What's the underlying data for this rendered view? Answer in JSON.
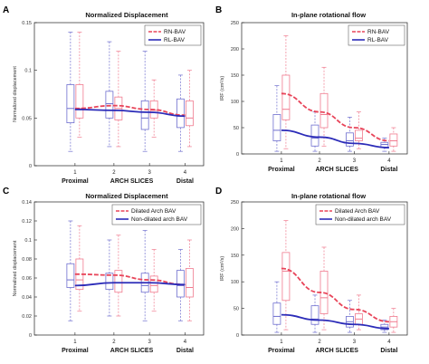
{
  "colors": {
    "red": "#e8455a",
    "blue": "#2b2bb8",
    "box_red": "#f07b8f",
    "box_blue": "#6f6fcf"
  },
  "chart_data": [
    {
      "letter": "A",
      "type": "box",
      "title": "Normalized Displacement",
      "ylabel": "Normalized displacement",
      "ylim": [
        0,
        0.15
      ],
      "yticks": [
        "0",
        "0.05",
        "0.1",
        "0.15"
      ],
      "ytick_values": [
        0,
        0.05,
        0.1,
        0.15
      ],
      "categories": [
        "1",
        "2",
        "3",
        "4"
      ],
      "x_end_labels": [
        "Proximal",
        "Distal"
      ],
      "x_center_label": "ARCH SLICES",
      "legend": [
        "RN-BAV",
        "RL-BAV"
      ],
      "boxes": [
        {
          "name": "RL-BAV",
          "pos": 1,
          "color": "blue",
          "stats": [
            0.015,
            0.045,
            0.06,
            0.085,
            0.14
          ]
        },
        {
          "name": "RN-BAV",
          "pos": 1,
          "color": "red",
          "stats": [
            0.03,
            0.05,
            0.06,
            0.085,
            0.14
          ]
        },
        {
          "name": "RL-BAV",
          "pos": 2,
          "color": "blue",
          "stats": [
            0.02,
            0.05,
            0.065,
            0.078,
            0.13
          ]
        },
        {
          "name": "RN-BAV",
          "pos": 2,
          "color": "red",
          "stats": [
            0.02,
            0.048,
            0.06,
            0.072,
            0.12
          ]
        },
        {
          "name": "RL-BAV",
          "pos": 3,
          "color": "blue",
          "stats": [
            0.015,
            0.038,
            0.05,
            0.068,
            0.12
          ]
        },
        {
          "name": "RN-BAV",
          "pos": 3,
          "color": "red",
          "stats": [
            0.03,
            0.05,
            0.058,
            0.068,
            0.09
          ]
        },
        {
          "name": "RL-BAV",
          "pos": 4,
          "color": "blue",
          "stats": [
            0.015,
            0.04,
            0.052,
            0.07,
            0.095
          ]
        },
        {
          "name": "RN-BAV",
          "pos": 4,
          "color": "red",
          "stats": [
            0.02,
            0.042,
            0.05,
            0.068,
            0.1
          ]
        }
      ],
      "trend": [
        {
          "name": "RN-BAV",
          "color": "red",
          "dashed": true,
          "x": [
            1,
            2,
            3,
            4
          ],
          "y": [
            0.06,
            0.063,
            0.059,
            0.053
          ]
        },
        {
          "name": "RL-BAV",
          "color": "blue",
          "dashed": false,
          "x": [
            1,
            2,
            3,
            4
          ],
          "y": [
            0.059,
            0.058,
            0.056,
            0.052
          ]
        }
      ]
    },
    {
      "letter": "B",
      "type": "box",
      "title": "In-plane rotational flow",
      "ylabel": "IRF (cm²/s)",
      "ylim": [
        0,
        250
      ],
      "yticks": [
        "0",
        "50",
        "100",
        "150",
        "200",
        "250"
      ],
      "ytick_values": [
        0,
        50,
        100,
        150,
        200,
        250
      ],
      "categories": [
        "1",
        "2",
        "3",
        "4"
      ],
      "x_end_labels": [
        "Proximal",
        "Distal"
      ],
      "x_center_label": "ARCH SLICES",
      "legend": [
        "RN-BAV",
        "RL-BAV"
      ],
      "boxes": [
        {
          "name": "RL-BAV",
          "pos": 1,
          "color": "blue",
          "stats": [
            5,
            25,
            45,
            75,
            130
          ]
        },
        {
          "name": "RN-BAV",
          "pos": 1,
          "color": "red",
          "stats": [
            10,
            65,
            85,
            150,
            225
          ]
        },
        {
          "name": "RL-BAV",
          "pos": 2,
          "color": "blue",
          "stats": [
            5,
            15,
            30,
            55,
            80
          ]
        },
        {
          "name": "RN-BAV",
          "pos": 2,
          "color": "red",
          "stats": [
            15,
            50,
            75,
            115,
            165
          ]
        },
        {
          "name": "RL-BAV",
          "pos": 3,
          "color": "blue",
          "stats": [
            5,
            15,
            25,
            40,
            70
          ]
        },
        {
          "name": "RN-BAV",
          "pos": 3,
          "color": "red",
          "stats": [
            10,
            25,
            30,
            45,
            80
          ]
        },
        {
          "name": "RL-BAV",
          "pos": 4,
          "color": "blue",
          "stats": [
            5,
            12,
            18,
            22,
            30
          ]
        },
        {
          "name": "RN-BAV",
          "pos": 4,
          "color": "red",
          "stats": [
            5,
            15,
            25,
            38,
            50
          ]
        }
      ],
      "trend": [
        {
          "name": "RN-BAV",
          "color": "red",
          "dashed": true,
          "x": [
            1,
            2,
            3,
            4
          ],
          "y": [
            115,
            80,
            50,
            25
          ]
        },
        {
          "name": "RL-BAV",
          "color": "blue",
          "dashed": false,
          "x": [
            1,
            2,
            3,
            4
          ],
          "y": [
            45,
            32,
            20,
            12
          ]
        }
      ]
    },
    {
      "letter": "C",
      "type": "box",
      "title": "Normalized Displacement",
      "ylabel": "Normalized displacement",
      "ylim": [
        0,
        0.14
      ],
      "yticks": [
        "0",
        "0.02",
        "0.04",
        "0.06",
        "0.08",
        "0.1",
        "0.12",
        "0.14"
      ],
      "ytick_values": [
        0,
        0.02,
        0.04,
        0.06,
        0.08,
        0.1,
        0.12,
        0.14
      ],
      "categories": [
        "1",
        "2",
        "3",
        "4"
      ],
      "x_end_labels": [
        "Proximal",
        "Distal"
      ],
      "x_center_label": "ARCH SLICES",
      "legend": [
        "Dilated Arch BAV",
        "Non-dilated arch BAV"
      ],
      "boxes": [
        {
          "name": "Non-dilated arch BAV",
          "pos": 1,
          "color": "blue",
          "stats": [
            0.015,
            0.05,
            0.058,
            0.075,
            0.12
          ]
        },
        {
          "name": "Dilated Arch BAV",
          "pos": 1,
          "color": "red",
          "stats": [
            0.025,
            0.048,
            0.058,
            0.08,
            0.115
          ]
        },
        {
          "name": "Non-dilated arch BAV",
          "pos": 2,
          "color": "blue",
          "stats": [
            0.02,
            0.048,
            0.055,
            0.065,
            0.1
          ]
        },
        {
          "name": "Dilated Arch BAV",
          "pos": 2,
          "color": "red",
          "stats": [
            0.02,
            0.045,
            0.055,
            0.068,
            0.105
          ]
        },
        {
          "name": "Non-dilated arch BAV",
          "pos": 3,
          "color": "blue",
          "stats": [
            0.015,
            0.045,
            0.052,
            0.065,
            0.11
          ]
        },
        {
          "name": "Dilated Arch BAV",
          "pos": 3,
          "color": "red",
          "stats": [
            0.025,
            0.045,
            0.052,
            0.062,
            0.09
          ]
        },
        {
          "name": "Non-dilated arch BAV",
          "pos": 4,
          "color": "blue",
          "stats": [
            0.015,
            0.04,
            0.052,
            0.068,
            0.09
          ]
        },
        {
          "name": "Dilated Arch BAV",
          "pos": 4,
          "color": "red",
          "stats": [
            0.015,
            0.04,
            0.05,
            0.07,
            0.1
          ]
        }
      ],
      "trend": [
        {
          "name": "Dilated Arch BAV",
          "color": "red",
          "dashed": true,
          "x": [
            1,
            2,
            3,
            4
          ],
          "y": [
            0.064,
            0.063,
            0.058,
            0.053
          ]
        },
        {
          "name": "Non-dilated arch BAV",
          "color": "blue",
          "dashed": false,
          "x": [
            1,
            2,
            3,
            4
          ],
          "y": [
            0.052,
            0.055,
            0.055,
            0.053
          ]
        }
      ]
    },
    {
      "letter": "D",
      "type": "box",
      "title": "In-plane rotational flow",
      "ylabel": "IRF (cm²/s)",
      "ylim": [
        0,
        250
      ],
      "yticks": [
        "0",
        "50",
        "100",
        "150",
        "200",
        "250"
      ],
      "ytick_values": [
        0,
        50,
        100,
        150,
        200,
        250
      ],
      "categories": [
        "1",
        "2",
        "3",
        "4"
      ],
      "x_end_labels": [
        "Proximal",
        "Distal"
      ],
      "x_center_label": "ARCH SLICES",
      "legend": [
        "Dilated Arch BAV",
        "Non-dilated arch BAV"
      ],
      "boxes": [
        {
          "name": "Non-dilated arch BAV",
          "pos": 1,
          "color": "blue",
          "stats": [
            5,
            20,
            35,
            60,
            100
          ]
        },
        {
          "name": "Dilated Arch BAV",
          "pos": 1,
          "color": "red",
          "stats": [
            10,
            65,
            120,
            155,
            215
          ]
        },
        {
          "name": "Non-dilated arch BAV",
          "pos": 2,
          "color": "blue",
          "stats": [
            5,
            20,
            30,
            55,
            75
          ]
        },
        {
          "name": "Dilated Arch BAV",
          "pos": 2,
          "color": "red",
          "stats": [
            10,
            40,
            70,
            120,
            165
          ]
        },
        {
          "name": "Non-dilated arch BAV",
          "pos": 3,
          "color": "blue",
          "stats": [
            5,
            15,
            25,
            35,
            65
          ]
        },
        {
          "name": "Dilated Arch BAV",
          "pos": 3,
          "color": "red",
          "stats": [
            10,
            20,
            30,
            40,
            75
          ]
        },
        {
          "name": "Non-dilated arch BAV",
          "pos": 4,
          "color": "blue",
          "stats": [
            5,
            10,
            15,
            20,
            28
          ]
        },
        {
          "name": "Dilated Arch BAV",
          "pos": 4,
          "color": "red",
          "stats": [
            5,
            15,
            25,
            35,
            50
          ]
        }
      ],
      "trend": [
        {
          "name": "Dilated Arch BAV",
          "color": "red",
          "dashed": true,
          "x": [
            1,
            2,
            3,
            4
          ],
          "y": [
            125,
            80,
            48,
            25
          ]
        },
        {
          "name": "Non-dilated arch BAV",
          "color": "blue",
          "dashed": false,
          "x": [
            1,
            2,
            3,
            4
          ],
          "y": [
            38,
            28,
            20,
            12
          ]
        }
      ]
    }
  ]
}
